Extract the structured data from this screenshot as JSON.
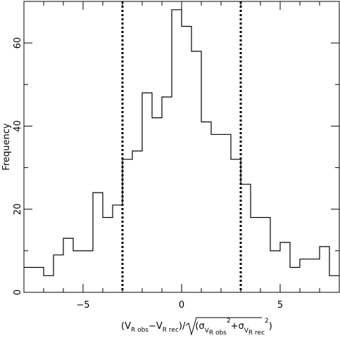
{
  "chart_data": {
    "type": "bar",
    "style": "step-histogram",
    "ylabel": "Frequency",
    "xlabel_parts": {
      "open": "(V",
      "r_obs_sub": "R obs",
      "minus": "−V",
      "r_rec_sub": "R rec",
      "mid": ")/",
      "sqrt_open": "(σ",
      "v_sub": "V",
      "r_obs_subsub": "R obs",
      "sq1": "2",
      "plus": "+σ",
      "r_rec_subsub": "R rec",
      "sq2": "2",
      "close": ")"
    },
    "xlim": [
      -8,
      8
    ],
    "ylim": [
      0,
      70
    ],
    "x_ticks": [
      -5,
      0,
      5
    ],
    "x_tick_labels": [
      "−5",
      "0",
      "5"
    ],
    "y_ticks": [
      0,
      20,
      40,
      60
    ],
    "y_tick_labels": [
      "0",
      "20",
      "40",
      "60"
    ],
    "bin_width": 0.5,
    "bin_edges_start": -8,
    "values": [
      6,
      6,
      4,
      9,
      13,
      10,
      10,
      24,
      18,
      21,
      32,
      34,
      48,
      42,
      47,
      68,
      64,
      58,
      41,
      38,
      38,
      32,
      26,
      18,
      18,
      10,
      12,
      6,
      8,
      8,
      11,
      4
    ],
    "vlines": [
      -3,
      3
    ],
    "vline_style": "dotted",
    "grid": false,
    "colors": {
      "line": "#000000",
      "background": "#ffffff"
    }
  }
}
